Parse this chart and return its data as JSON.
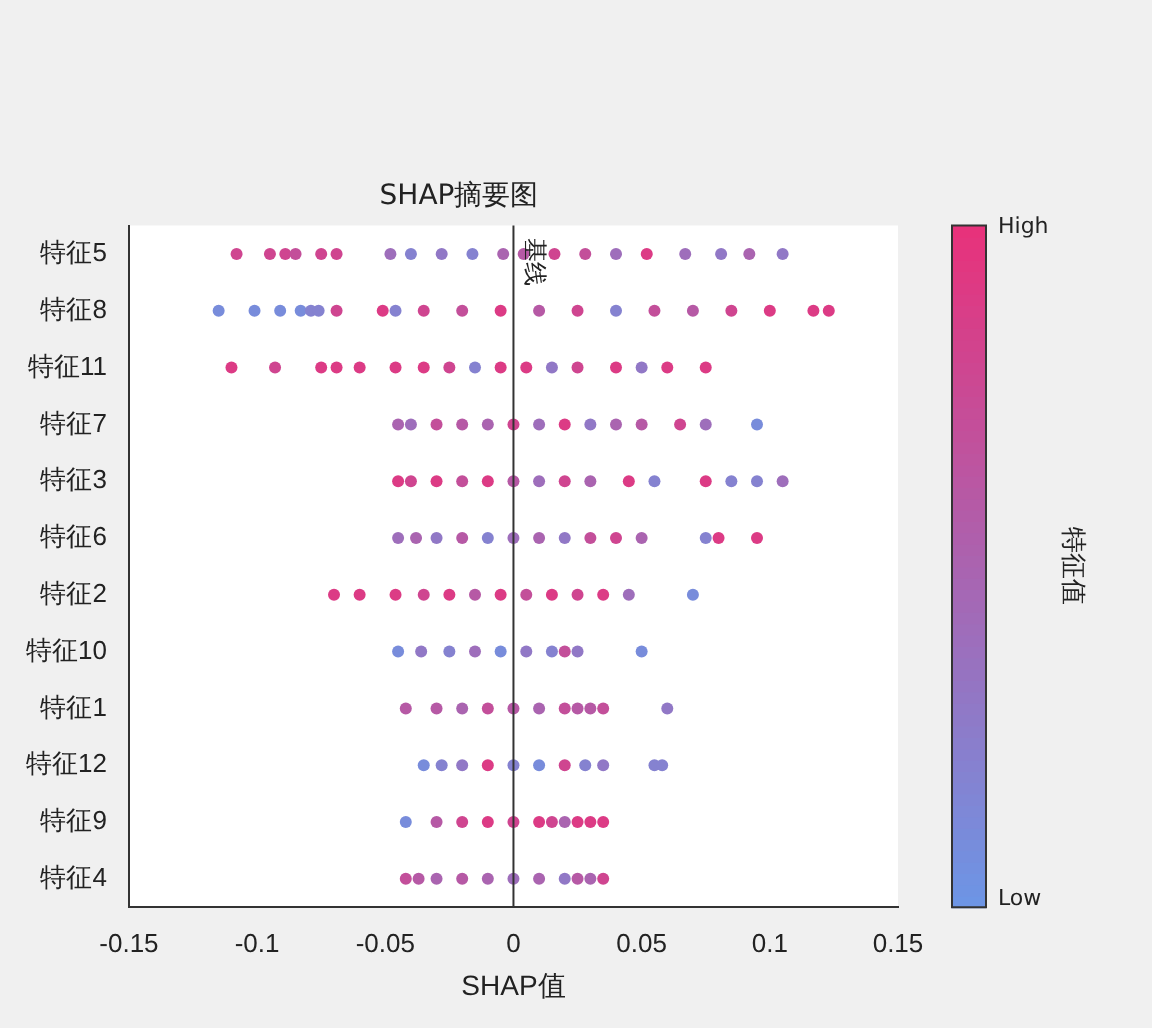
{
  "chart_data": {
    "type": "scatter",
    "orientation": "horizontal",
    "title": "SHAP摘要图",
    "xlabel": "SHAP值",
    "clabel": "特征值",
    "categories": [
      "特征5",
      "特征8",
      "特征11",
      "特征7",
      "特征3",
      "特征6",
      "特征2",
      "特征10",
      "特征1",
      "特征12",
      "特征9",
      "特征4"
    ],
    "xlim": [
      -0.15,
      0.15
    ],
    "xticks": [
      -0.15,
      -0.1,
      -0.05,
      0,
      0.05,
      0.1,
      0.15
    ],
    "clim": [
      0,
      1
    ],
    "cticks": [
      {
        "value": 0,
        "label": "Low"
      },
      {
        "value": 1,
        "label": "High"
      }
    ],
    "grid": false,
    "legend": false,
    "marker": "circle",
    "ref_lines": [
      {
        "axis": "x",
        "value": 0,
        "label": "基线"
      }
    ],
    "series": [
      {
        "x": [
          "特征5",
          "特征5",
          "特征5",
          "特征5",
          "特征5",
          "特征5",
          "特征5",
          "特征5",
          "特征5",
          "特征5",
          "特征5",
          "特征5",
          "特征5",
          "特征5",
          "特征5",
          "特征5",
          "特征5",
          "特征5",
          "特征5",
          "特征5"
        ],
        "values": [
          -0.108,
          -0.095,
          -0.089,
          -0.085,
          -0.075,
          -0.069,
          -0.048,
          -0.04,
          -0.028,
          -0.016,
          -0.004,
          0.004,
          0.016,
          0.028,
          0.04,
          0.052,
          0.067,
          0.081,
          0.092,
          0.105
        ],
        "colors": [
          "#cf4590",
          "#cf4590",
          "#cf4590",
          "#c34f9a",
          "#cf4590",
          "#cf4590",
          "#9e6ebb",
          "#8582d0",
          "#9178c6",
          "#8582d0",
          "#aa64b0",
          "#b659a5",
          "#cf4590",
          "#c34f9a",
          "#9e6ebb",
          "#dc3b85",
          "#9e6ebb",
          "#9178c6",
          "#aa64b0",
          "#9178c6"
        ]
      },
      {
        "x": [
          "特征8",
          "特征8",
          "特征8",
          "特征8",
          "特征8",
          "特征8",
          "特征8",
          "特征8",
          "特征8",
          "特征8",
          "特征8",
          "特征8",
          "特征8",
          "特征8",
          "特征8",
          "特征8",
          "特征8",
          "特征8",
          "特征8",
          "特征8",
          "特征8"
        ],
        "values": [
          -0.115,
          -0.101,
          -0.091,
          -0.083,
          -0.079,
          -0.076,
          -0.069,
          -0.051,
          -0.046,
          -0.035,
          -0.02,
          -0.005,
          0.01,
          0.025,
          0.04,
          0.055,
          0.07,
          0.085,
          0.1,
          0.117,
          0.123
        ],
        "colors": [
          "#788cdb",
          "#788cdb",
          "#788cdb",
          "#788cdb",
          "#8582d0",
          "#8582d0",
          "#cf4590",
          "#dc3b85",
          "#8582d0",
          "#cf4590",
          "#c34f9a",
          "#dc3b85",
          "#b659a5",
          "#cf4590",
          "#8582d0",
          "#c34f9a",
          "#b659a5",
          "#cf4590",
          "#dc3b85",
          "#dc3b85",
          "#dc3b85"
        ]
      },
      {
        "x": [
          "特征11",
          "特征11",
          "特征11",
          "特征11",
          "特征11",
          "特征11",
          "特征11",
          "特征11",
          "特征11",
          "特征11",
          "特征11",
          "特征11",
          "特征11",
          "特征11",
          "特征11",
          "特征11",
          "特征11"
        ],
        "values": [
          -0.11,
          -0.093,
          -0.075,
          -0.069,
          -0.06,
          -0.046,
          -0.035,
          -0.025,
          -0.015,
          -0.005,
          0.005,
          0.015,
          0.025,
          0.04,
          0.05,
          0.06,
          0.075
        ],
        "colors": [
          "#dc3b85",
          "#cf4590",
          "#dc3b85",
          "#dc3b85",
          "#dc3b85",
          "#dc3b85",
          "#dc3b85",
          "#cf4590",
          "#8582d0",
          "#dc3b85",
          "#dc3b85",
          "#9178c6",
          "#cf4590",
          "#dc3b85",
          "#9178c6",
          "#dc3b85",
          "#dc3b85"
        ]
      },
      {
        "x": [
          "特征7",
          "特征7",
          "特征7",
          "特征7",
          "特征7",
          "特征7",
          "特征7",
          "特征7",
          "特征7",
          "特征7",
          "特征7",
          "特征7",
          "特征7",
          "特征7"
        ],
        "values": [
          -0.045,
          -0.04,
          -0.03,
          -0.02,
          -0.01,
          0,
          0.01,
          0.02,
          0.03,
          0.04,
          0.05,
          0.065,
          0.075,
          0.095
        ],
        "colors": [
          "#aa64b0",
          "#9e6ebb",
          "#c34f9a",
          "#b659a5",
          "#aa64b0",
          "#cf4590",
          "#9e6ebb",
          "#dc3b85",
          "#9178c6",
          "#aa64b0",
          "#b659a5",
          "#cf4590",
          "#9e6ebb",
          "#788cdb"
        ]
      },
      {
        "x": [
          "特征3",
          "特征3",
          "特征3",
          "特征3",
          "特征3",
          "特征3",
          "特征3",
          "特征3",
          "特征3",
          "特征3",
          "特征3",
          "特征3",
          "特征3",
          "特征3",
          "特征3"
        ],
        "values": [
          -0.045,
          -0.04,
          -0.03,
          -0.02,
          -0.01,
          0,
          0.01,
          0.02,
          0.03,
          0.045,
          0.055,
          0.075,
          0.085,
          0.095,
          0.105
        ],
        "colors": [
          "#dc3b85",
          "#cf4590",
          "#dc3b85",
          "#c34f9a",
          "#dc3b85",
          "#b659a5",
          "#9e6ebb",
          "#cf4590",
          "#aa64b0",
          "#dc3b85",
          "#8582d0",
          "#dc3b85",
          "#8582d0",
          "#8582d0",
          "#9e6ebb"
        ]
      },
      {
        "x": [
          "特征6",
          "特征6",
          "特征6",
          "特征6",
          "特征6",
          "特征6",
          "特征6",
          "特征6",
          "特征6",
          "特征6",
          "特征6",
          "特征6",
          "特征6",
          "特征6"
        ],
        "values": [
          -0.045,
          -0.038,
          -0.03,
          -0.02,
          -0.01,
          0,
          0.01,
          0.02,
          0.03,
          0.04,
          0.05,
          0.075,
          0.08,
          0.095
        ],
        "colors": [
          "#9e6ebb",
          "#aa64b0",
          "#9178c6",
          "#b659a5",
          "#8582d0",
          "#9e6ebb",
          "#aa64b0",
          "#9178c6",
          "#c34f9a",
          "#cf4590",
          "#aa64b0",
          "#8582d0",
          "#dc3b85",
          "#dc3b85"
        ]
      },
      {
        "x": [
          "特征2",
          "特征2",
          "特征2",
          "特征2",
          "特征2",
          "特征2",
          "特征2",
          "特征2",
          "特征2",
          "特征2",
          "特征2",
          "特征2",
          "特征2"
        ],
        "values": [
          -0.07,
          -0.06,
          -0.046,
          -0.035,
          -0.025,
          -0.015,
          -0.005,
          0.005,
          0.015,
          0.025,
          0.035,
          0.045,
          0.07
        ],
        "colors": [
          "#dc3b85",
          "#dc3b85",
          "#dc3b85",
          "#cf4590",
          "#dc3b85",
          "#b659a5",
          "#dc3b85",
          "#c34f9a",
          "#dc3b85",
          "#cf4590",
          "#dc3b85",
          "#9e6ebb",
          "#788cdb"
        ]
      },
      {
        "x": [
          "特征10",
          "特征10",
          "特征10",
          "特征10",
          "特征10",
          "特征10",
          "特征10",
          "特征10",
          "特征10",
          "特征10"
        ],
        "values": [
          -0.045,
          -0.036,
          -0.025,
          -0.015,
          -0.005,
          0.005,
          0.015,
          0.02,
          0.025,
          0.05
        ],
        "colors": [
          "#788cdb",
          "#9178c6",
          "#8582d0",
          "#9e6ebb",
          "#788cdb",
          "#9178c6",
          "#8582d0",
          "#c34f9a",
          "#9178c6",
          "#788cdb"
        ]
      },
      {
        "x": [
          "特征1",
          "特征1",
          "特征1",
          "特征1",
          "特征1",
          "特征1",
          "特征1",
          "特征1",
          "特征1",
          "特征1",
          "特征1"
        ],
        "values": [
          -0.042,
          -0.03,
          -0.02,
          -0.01,
          0,
          0.01,
          0.02,
          0.025,
          0.03,
          0.035,
          0.06
        ],
        "colors": [
          "#b659a5",
          "#b659a5",
          "#aa64b0",
          "#c34f9a",
          "#b659a5",
          "#aa64b0",
          "#c34f9a",
          "#b659a5",
          "#b659a5",
          "#c34f9a",
          "#9178c6"
        ]
      },
      {
        "x": [
          "特征12",
          "特征12",
          "特征12",
          "特征12",
          "特征12",
          "特征12",
          "特征12",
          "特征12",
          "特征12",
          "特征12",
          "特征12"
        ],
        "values": [
          -0.035,
          -0.028,
          -0.02,
          -0.01,
          0,
          0.01,
          0.02,
          0.028,
          0.035,
          0.055,
          0.058
        ],
        "colors": [
          "#788cdb",
          "#8582d0",
          "#9178c6",
          "#dc3b85",
          "#8582d0",
          "#788cdb",
          "#cf4590",
          "#8582d0",
          "#9178c6",
          "#8582d0",
          "#8582d0"
        ]
      },
      {
        "x": [
          "特征9",
          "特征9",
          "特征9",
          "特征9",
          "特征9",
          "特征9",
          "特征9",
          "特征9",
          "特征9",
          "特征9",
          "特征9"
        ],
        "values": [
          -0.042,
          -0.03,
          -0.02,
          -0.01,
          0,
          0.01,
          0.015,
          0.02,
          0.025,
          0.03,
          0.035
        ],
        "colors": [
          "#788cdb",
          "#b659a5",
          "#cf4590",
          "#dc3b85",
          "#cf4590",
          "#dc3b85",
          "#cf4590",
          "#aa64b0",
          "#dc3b85",
          "#dc3b85",
          "#dc3b85"
        ]
      },
      {
        "x": [
          "特征4",
          "特征4",
          "特征4",
          "特征4",
          "特征4",
          "特征4",
          "特征4",
          "特征4",
          "特征4",
          "特征4",
          "特征4"
        ],
        "values": [
          -0.042,
          -0.037,
          -0.03,
          -0.02,
          -0.01,
          0,
          0.01,
          0.02,
          0.025,
          0.03,
          0.035
        ],
        "colors": [
          "#c34f9a",
          "#b659a5",
          "#aa64b0",
          "#b659a5",
          "#aa64b0",
          "#9e6ebb",
          "#aa64b0",
          "#9178c6",
          "#b659a5",
          "#aa64b0",
          "#cf4590"
        ]
      }
    ]
  }
}
